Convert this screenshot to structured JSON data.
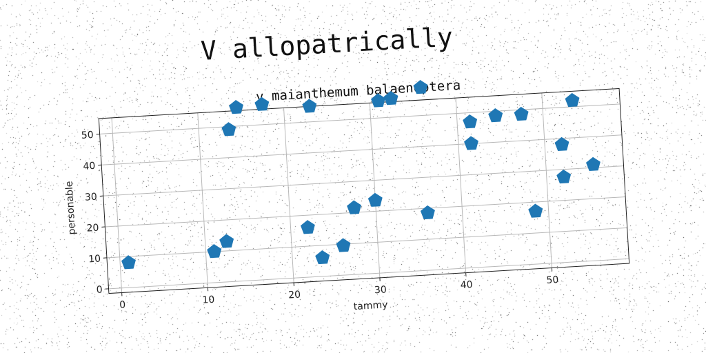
{
  "page": {
    "suptitle": "V allopatrically"
  },
  "chart_data": {
    "type": "scatter",
    "title": "v maianthemum balaenoptera",
    "xlabel": "tammy",
    "ylabel": "personable",
    "xlim": [
      -1.5,
      59
    ],
    "ylim": [
      -1.5,
      55
    ],
    "xticks": [
      0,
      10,
      20,
      30,
      40,
      50
    ],
    "yticks": [
      0,
      10,
      20,
      30,
      40,
      50
    ],
    "grid": true,
    "marker": "pentagon",
    "color": "#1f77b4",
    "series": [
      {
        "x": [
          1,
          11,
          12.5,
          13.5,
          14.5,
          17.5,
          22,
          23,
          23.5,
          26,
          27.5,
          30,
          31,
          32.5,
          36,
          36,
          41.5,
          41.5,
          44.5,
          47.5,
          48.5,
          52,
          52,
          53.5,
          55.5
        ],
        "y": [
          8,
          10,
          13,
          49,
          56,
          56.5,
          16,
          55,
          6,
          9.5,
          21.5,
          23.5,
          55.5,
          56,
          18.5,
          59,
          47,
          40,
          48.5,
          48.5,
          17,
          27.5,
          38,
          52,
          31
        ]
      }
    ]
  }
}
